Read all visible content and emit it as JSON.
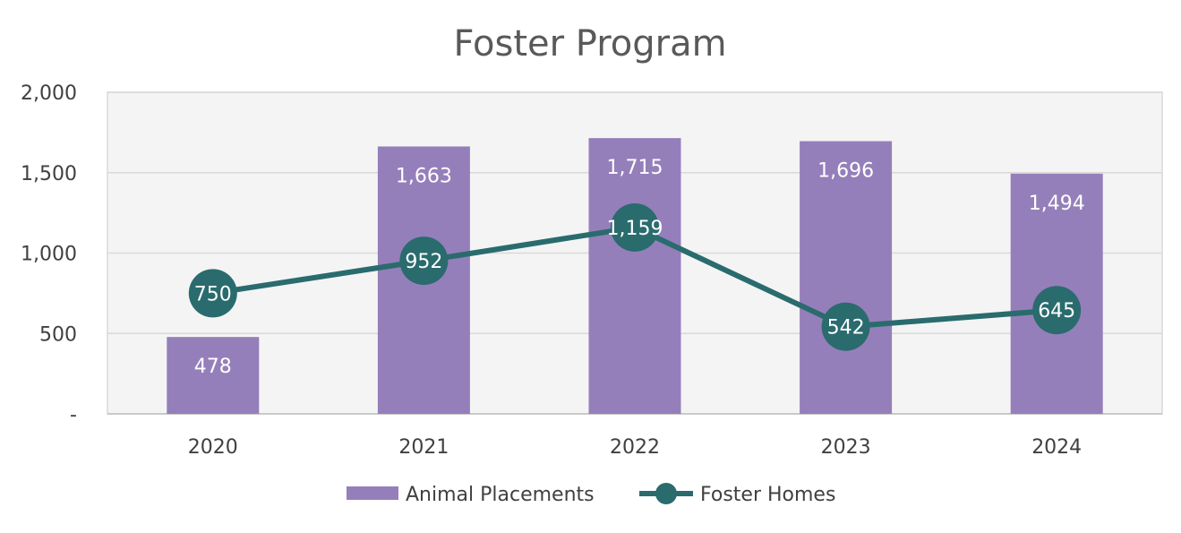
{
  "chart_data": {
    "type": "bar",
    "title": "Foster Program",
    "categories": [
      "2020",
      "2021",
      "2022",
      "2023",
      "2024"
    ],
    "series": [
      {
        "name": "Animal Placements",
        "type": "bar",
        "color": "#957FBA",
        "values": [
          478,
          1663,
          1715,
          1696,
          1494
        ],
        "labels": [
          "478",
          "1,663",
          "1,715",
          "1,696",
          "1,494"
        ]
      },
      {
        "name": "Foster Homes",
        "type": "line",
        "color": "#2A6B6E",
        "values": [
          750,
          952,
          1159,
          542,
          645
        ],
        "labels": [
          "750",
          "952",
          "1,159",
          "542",
          "645"
        ]
      }
    ],
    "ylim": [
      0,
      2000
    ],
    "yticks": [
      0,
      500,
      1000,
      1500,
      2000
    ],
    "ytick_labels": [
      "-",
      "500",
      "1,000",
      "1,500",
      "2,000"
    ],
    "xlabel": "",
    "ylabel": "",
    "grid": true,
    "legend": "bottom",
    "plot_background": "#F4F4F4"
  }
}
